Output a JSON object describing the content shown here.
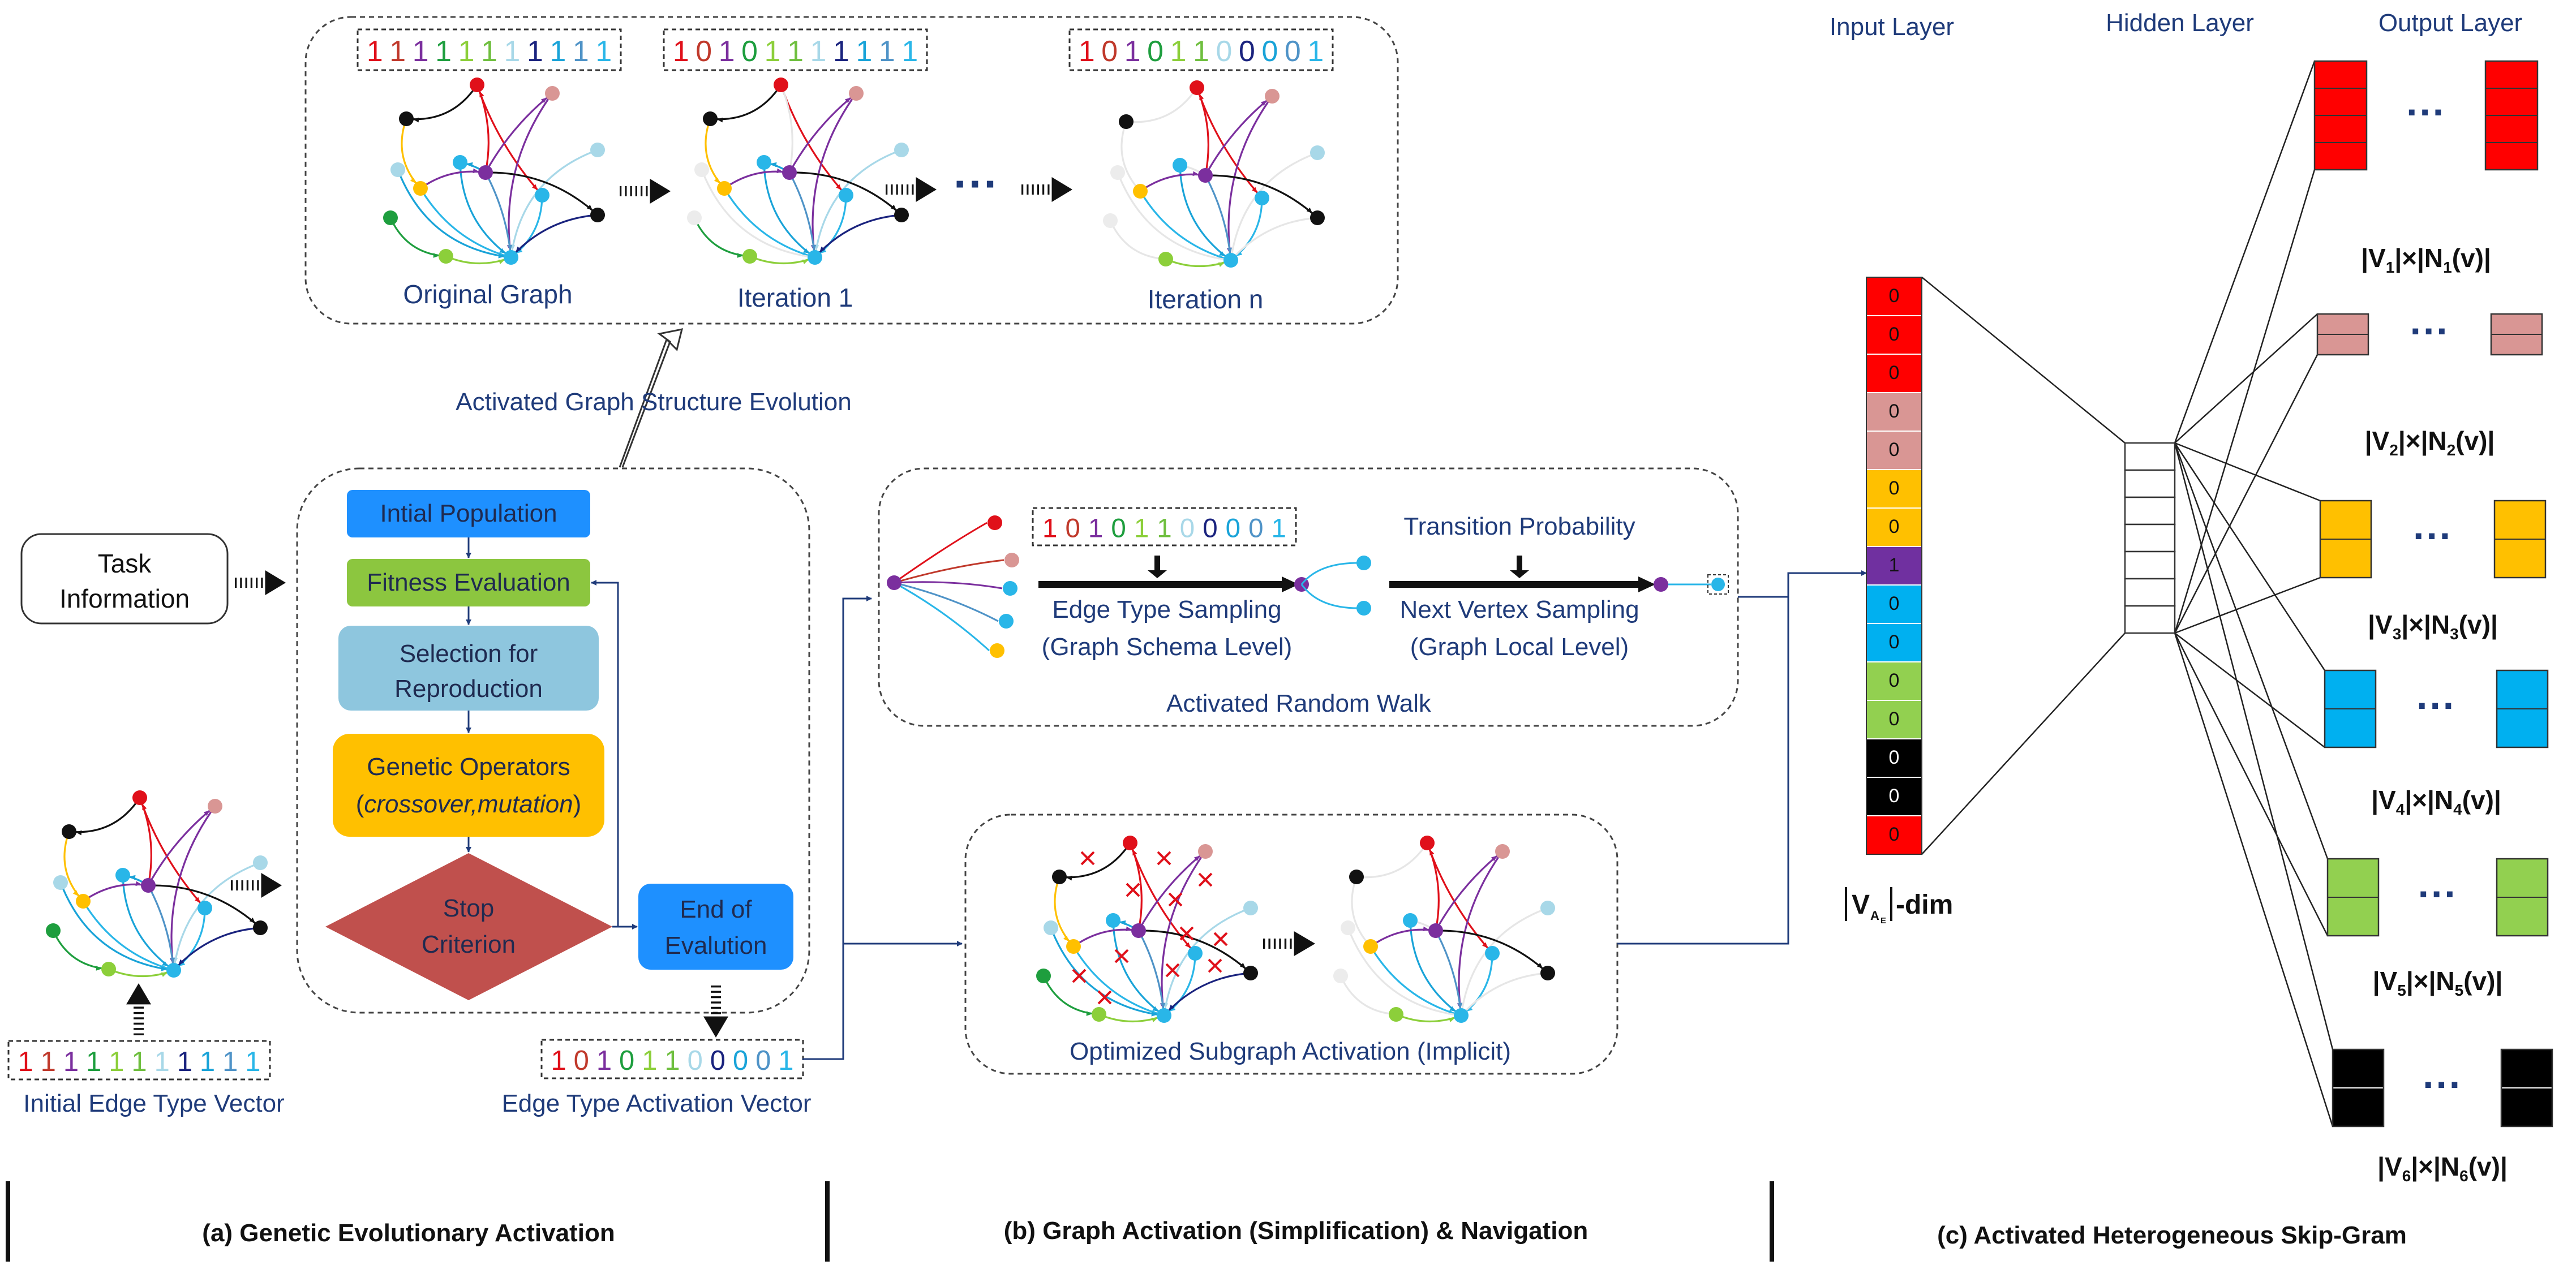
{
  "top_panel": {
    "original_graph_label": "Original Graph",
    "iteration1_label": "Iteration 1",
    "iterationn_label": "Iteration n",
    "ellipsis": "···",
    "caption": "Activated Graph Structure Evolution"
  },
  "edge_vectors": {
    "original": [
      "1",
      "1",
      "1",
      "1",
      "1",
      "1",
      "1",
      "1",
      "1",
      "1",
      "1"
    ],
    "iteration1": [
      "1",
      "0",
      "1",
      "0",
      "1",
      "1",
      "1",
      "1",
      "1",
      "1",
      "1"
    ],
    "iterationn": [
      "1",
      "0",
      "1",
      "0",
      "1",
      "1",
      "0",
      "0",
      "0",
      "0",
      "1"
    ],
    "initial": [
      "1",
      "1",
      "1",
      "1",
      "1",
      "1",
      "1",
      "1",
      "1",
      "1",
      "1"
    ],
    "activation": [
      "1",
      "0",
      "1",
      "0",
      "1",
      "1",
      "0",
      "0",
      "0",
      "0",
      "1"
    ],
    "walk": [
      "1",
      "0",
      "1",
      "0",
      "1",
      "1",
      "0",
      "0",
      "0",
      "0",
      "1"
    ]
  },
  "edge_type_colors": [
    "#e0101a",
    "#c0392b",
    "#7b2f9e",
    "#1e9e3e",
    "#8ccf3a",
    "#6fbf3f",
    "#a8d8e8",
    "#1a237e",
    "#19a3d8",
    "#4f93c7",
    "#29b6e8"
  ],
  "left": {
    "task_information": "Task Information",
    "initial_edge_vector_label": "Initial Edge Type Vector"
  },
  "flowchart": {
    "initial_population": "Intial Population",
    "fitness_evaluation": "Fitness Evaluation",
    "selection": "Selection for Reproduction",
    "genetic_operators": "Genetic Operators",
    "genetic_operators_detail": "crossover,mutation",
    "stop_criterion": "Stop Criterion",
    "end_of_evolution": "End of Evalution",
    "activation_vector_label": "Edge Type Activation Vector"
  },
  "walk_panel": {
    "transition_probability": "Transition Probability",
    "edge_type_sampling": "Edge Type Sampling",
    "edge_type_sampling_level": "(Graph Schema Level)",
    "next_vertex_sampling": "Next Vertex Sampling",
    "next_vertex_sampling_level": "(Graph Local Level)",
    "caption": "Activated Random Walk"
  },
  "subgraph_panel": {
    "caption": "Optimized Subgraph Activation (Implicit)"
  },
  "skipgram": {
    "input_layer": "Input Layer",
    "hidden_layer": "Hidden Layer",
    "output_layer": "Output Layer",
    "input_values": [
      "0",
      "0",
      "0",
      "0",
      "0",
      "0",
      "0",
      "1",
      "0",
      "0",
      "0",
      "0",
      "0",
      "0",
      "0"
    ],
    "input_dim_label": "-dim",
    "output_ellipsis": "···",
    "output_labels": [
      "|V1|×|N1(v)|",
      "|V2|×|N2(v)|",
      "|V3|×|N3(v)|",
      "|V4|×|N4(v)|",
      "|V5|×|N5(v)|",
      "|V6|×|N6(v)|"
    ],
    "group_colors": [
      "#ff0000",
      "#d99694",
      "#ffc000",
      "#00b0f0",
      "#92d050",
      "#000000"
    ]
  },
  "section_labels": {
    "a": "(a) Genetic Evolutionary Activation",
    "b": "(b) Graph  Activation (Simplification) & Navigation",
    "c": "(c) Activated Heterogeneous Skip-Gram"
  }
}
